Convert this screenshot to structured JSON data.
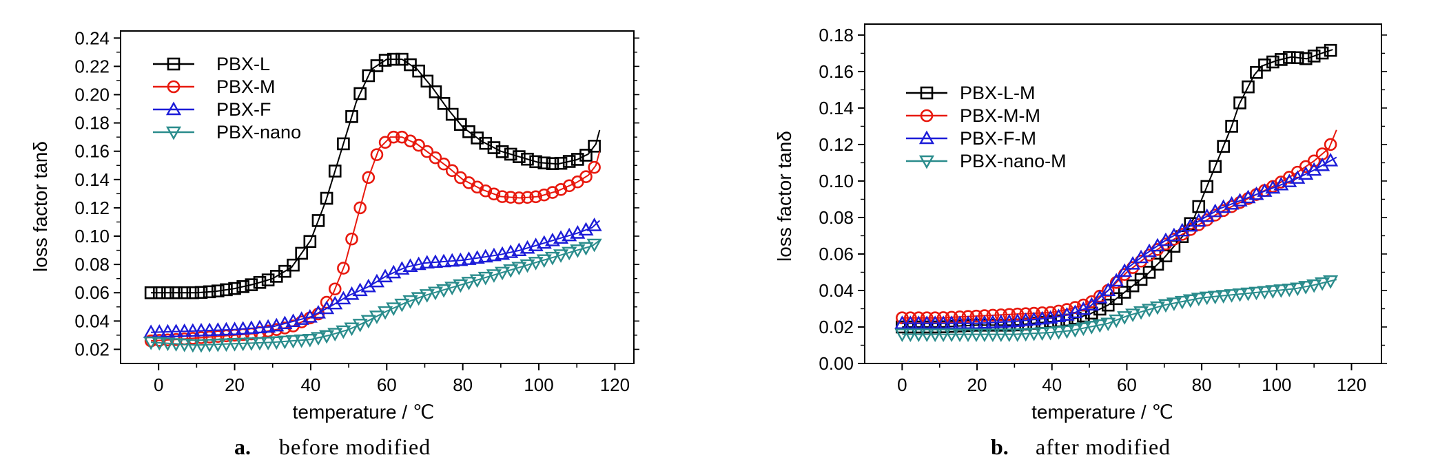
{
  "figure": {
    "panels": [
      {
        "letter": "a.",
        "caption": "before modified"
      },
      {
        "letter": "b.",
        "caption": "after modified"
      }
    ]
  },
  "chart_data": [
    {
      "type": "line",
      "panel": "a",
      "title": "",
      "xlabel": "temperature / ℃",
      "ylabel": "loss factor tanδ",
      "xlim": [
        -10,
        125
      ],
      "ylim": [
        0.01,
        0.245
      ],
      "xticks": [
        0,
        20,
        40,
        60,
        80,
        100,
        120
      ],
      "xtick_labels": [
        "0",
        "20",
        "40",
        "60",
        "80",
        "100",
        "120"
      ],
      "yticks": [
        0.02,
        0.04,
        0.06,
        0.08,
        0.1,
        0.12,
        0.14,
        0.16,
        0.18,
        0.2,
        0.22,
        0.24
      ],
      "ytick_labels": [
        "0.02",
        "0.04",
        "0.06",
        "0.08",
        "0.10",
        "0.12",
        "0.14",
        "0.16",
        "0.18",
        "0.20",
        "0.22",
        "0.24"
      ],
      "grid": false,
      "legend_position": "top-left",
      "series": [
        {
          "name": "PBX-L",
          "color": "#000000",
          "marker": "square",
          "points": [
            [
              -2,
              0.06
            ],
            [
              5,
              0.06
            ],
            [
              10,
              0.06
            ],
            [
              15,
              0.061
            ],
            [
              20,
              0.063
            ],
            [
              25,
              0.066
            ],
            [
              30,
              0.07
            ],
            [
              35,
              0.078
            ],
            [
              40,
              0.097
            ],
            [
              44,
              0.125
            ],
            [
              48,
              0.16
            ],
            [
              52,
              0.195
            ],
            [
              56,
              0.218
            ],
            [
              60,
              0.225
            ],
            [
              64,
              0.225
            ],
            [
              68,
              0.218
            ],
            [
              72,
              0.205
            ],
            [
              76,
              0.19
            ],
            [
              80,
              0.177
            ],
            [
              85,
              0.167
            ],
            [
              90,
              0.16
            ],
            [
              95,
              0.156
            ],
            [
              100,
              0.152
            ],
            [
              105,
              0.151
            ],
            [
              110,
              0.154
            ],
            [
              113,
              0.158
            ],
            [
              115,
              0.165
            ],
            [
              116,
              0.175
            ]
          ]
        },
        {
          "name": "PBX-M",
          "color": "#e8190e",
          "marker": "circle",
          "points": [
            [
              -2,
              0.026
            ],
            [
              5,
              0.027
            ],
            [
              15,
              0.029
            ],
            [
              25,
              0.031
            ],
            [
              35,
              0.036
            ],
            [
              42,
              0.045
            ],
            [
              46,
              0.06
            ],
            [
              49,
              0.08
            ],
            [
              52,
              0.11
            ],
            [
              55,
              0.14
            ],
            [
              58,
              0.162
            ],
            [
              61,
              0.17
            ],
            [
              64,
              0.17
            ],
            [
              68,
              0.165
            ],
            [
              72,
              0.157
            ],
            [
              76,
              0.149
            ],
            [
              80,
              0.14
            ],
            [
              85,
              0.133
            ],
            [
              90,
              0.128
            ],
            [
              95,
              0.127
            ],
            [
              100,
              0.128
            ],
            [
              105,
              0.132
            ],
            [
              110,
              0.138
            ],
            [
              113,
              0.143
            ],
            [
              115,
              0.15
            ],
            [
              116,
              0.16
            ]
          ]
        },
        {
          "name": "PBX-F",
          "color": "#1c1cd8",
          "marker": "triangle-up",
          "points": [
            [
              -2,
              0.032
            ],
            [
              10,
              0.033
            ],
            [
              20,
              0.034
            ],
            [
              30,
              0.036
            ],
            [
              40,
              0.043
            ],
            [
              45,
              0.05
            ],
            [
              50,
              0.058
            ],
            [
              55,
              0.064
            ],
            [
              60,
              0.072
            ],
            [
              65,
              0.078
            ],
            [
              70,
              0.081
            ],
            [
              75,
              0.082
            ],
            [
              80,
              0.083
            ],
            [
              85,
              0.085
            ],
            [
              90,
              0.087
            ],
            [
              95,
              0.09
            ],
            [
              100,
              0.094
            ],
            [
              105,
              0.098
            ],
            [
              110,
              0.102
            ],
            [
              114,
              0.106
            ],
            [
              116,
              0.111
            ]
          ]
        },
        {
          "name": "PBX-nano",
          "color": "#2a8c8c",
          "marker": "triangle-down",
          "points": [
            [
              -2,
              0.025
            ],
            [
              10,
              0.023
            ],
            [
              20,
              0.024
            ],
            [
              30,
              0.025
            ],
            [
              40,
              0.027
            ],
            [
              45,
              0.03
            ],
            [
              50,
              0.034
            ],
            [
              55,
              0.04
            ],
            [
              60,
              0.047
            ],
            [
              65,
              0.053
            ],
            [
              70,
              0.058
            ],
            [
              75,
              0.062
            ],
            [
              80,
              0.066
            ],
            [
              85,
              0.07
            ],
            [
              90,
              0.074
            ],
            [
              95,
              0.078
            ],
            [
              100,
              0.082
            ],
            [
              105,
              0.086
            ],
            [
              110,
              0.09
            ],
            [
              114,
              0.093
            ],
            [
              116,
              0.097
            ]
          ]
        }
      ]
    },
    {
      "type": "line",
      "panel": "b",
      "title": "",
      "xlabel": "temperature / ℃",
      "ylabel": "loss factor tanδ",
      "xlim": [
        -10,
        128
      ],
      "ylim": [
        0.0,
        0.186
      ],
      "xticks": [
        0,
        20,
        40,
        60,
        80,
        100,
        120
      ],
      "xtick_labels": [
        "0",
        "20",
        "40",
        "60",
        "80",
        "100",
        "120"
      ],
      "yticks": [
        0.0,
        0.02,
        0.04,
        0.06,
        0.08,
        0.1,
        0.12,
        0.14,
        0.16,
        0.18
      ],
      "ytick_labels": [
        "0.00",
        "0.02",
        "0.04",
        "0.06",
        "0.08",
        "0.10",
        "0.12",
        "0.14",
        "0.16",
        "0.18"
      ],
      "grid": false,
      "legend_position": "top-left",
      "series": [
        {
          "name": "PBX-L-M",
          "color": "#000000",
          "marker": "square",
          "points": [
            [
              0,
              0.02
            ],
            [
              10,
              0.02
            ],
            [
              20,
              0.021
            ],
            [
              30,
              0.021
            ],
            [
              40,
              0.023
            ],
            [
              45,
              0.024
            ],
            [
              50,
              0.027
            ],
            [
              55,
              0.032
            ],
            [
              60,
              0.04
            ],
            [
              65,
              0.048
            ],
            [
              70,
              0.058
            ],
            [
              75,
              0.07
            ],
            [
              78,
              0.08
            ],
            [
              80,
              0.09
            ],
            [
              82,
              0.1
            ],
            [
              84,
              0.11
            ],
            [
              86,
              0.12
            ],
            [
              88,
              0.13
            ],
            [
              90,
              0.142
            ],
            [
              92,
              0.15
            ],
            [
              94,
              0.158
            ],
            [
              96,
              0.163
            ],
            [
              100,
              0.166
            ],
            [
              104,
              0.168
            ],
            [
              108,
              0.167
            ],
            [
              112,
              0.17
            ],
            [
              115,
              0.172
            ]
          ]
        },
        {
          "name": "PBX-M-M",
          "color": "#e8190e",
          "marker": "circle",
          "points": [
            [
              0,
              0.025
            ],
            [
              10,
              0.025
            ],
            [
              20,
              0.026
            ],
            [
              30,
              0.027
            ],
            [
              40,
              0.028
            ],
            [
              45,
              0.03
            ],
            [
              50,
              0.033
            ],
            [
              55,
              0.04
            ],
            [
              60,
              0.05
            ],
            [
              65,
              0.058
            ],
            [
              70,
              0.065
            ],
            [
              75,
              0.071
            ],
            [
              80,
              0.077
            ],
            [
              85,
              0.083
            ],
            [
              90,
              0.088
            ],
            [
              95,
              0.093
            ],
            [
              100,
              0.098
            ],
            [
              105,
              0.104
            ],
            [
              110,
              0.111
            ],
            [
              114,
              0.118
            ],
            [
              116,
              0.128
            ]
          ]
        },
        {
          "name": "PBX-F-M",
          "color": "#1c1cd8",
          "marker": "triangle-up",
          "points": [
            [
              0,
              0.022
            ],
            [
              10,
              0.022
            ],
            [
              20,
              0.022
            ],
            [
              30,
              0.023
            ],
            [
              40,
              0.025
            ],
            [
              45,
              0.027
            ],
            [
              50,
              0.031
            ],
            [
              55,
              0.04
            ],
            [
              60,
              0.052
            ],
            [
              65,
              0.06
            ],
            [
              70,
              0.067
            ],
            [
              75,
              0.073
            ],
            [
              80,
              0.079
            ],
            [
              85,
              0.085
            ],
            [
              90,
              0.089
            ],
            [
              95,
              0.093
            ],
            [
              100,
              0.097
            ],
            [
              105,
              0.101
            ],
            [
              110,
              0.106
            ],
            [
              116,
              0.113
            ]
          ]
        },
        {
          "name": "PBX-nano-M",
          "color": "#2a8c8c",
          "marker": "triangle-down",
          "points": [
            [
              0,
              0.016
            ],
            [
              10,
              0.016
            ],
            [
              20,
              0.016
            ],
            [
              30,
              0.016
            ],
            [
              40,
              0.017
            ],
            [
              45,
              0.018
            ],
            [
              50,
              0.02
            ],
            [
              55,
              0.022
            ],
            [
              60,
              0.026
            ],
            [
              65,
              0.029
            ],
            [
              70,
              0.032
            ],
            [
              75,
              0.034
            ],
            [
              80,
              0.036
            ],
            [
              85,
              0.037
            ],
            [
              90,
              0.038
            ],
            [
              95,
              0.039
            ],
            [
              100,
              0.04
            ],
            [
              105,
              0.041
            ],
            [
              110,
              0.043
            ],
            [
              116,
              0.046
            ]
          ]
        }
      ]
    }
  ]
}
